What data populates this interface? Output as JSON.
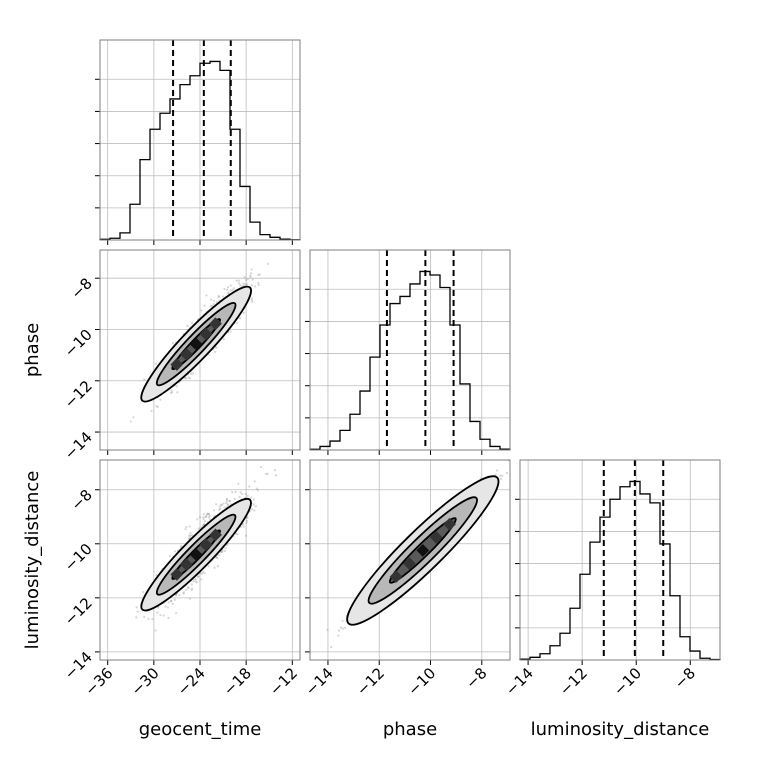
{
  "chart_data": {
    "type": "corner",
    "parameters": [
      "geocent_time",
      "phase",
      "luminosity_distance"
    ],
    "axis_labels": {
      "x": [
        "geocent_time",
        "phase",
        "luminosity_distance"
      ],
      "y": [
        "phase",
        "luminosity_distance"
      ]
    },
    "ranges": {
      "geocent_time": [
        -37,
        -11
      ],
      "phase": [
        -14.7,
        -6.9
      ],
      "luminosity_distance": [
        -14.3,
        -6.9
      ]
    },
    "ticks": {
      "geocent_time": [
        -36,
        -30,
        -24,
        -18,
        -12
      ],
      "phase": [
        -14,
        -12,
        -10,
        -8
      ],
      "luminosity_distance": [
        -14,
        -12,
        -10,
        -8
      ]
    },
    "tick_labels": {
      "geocent_time": [
        "−36",
        "−30",
        "−24",
        "−18",
        "−12"
      ],
      "phase": [
        "−14",
        "−12",
        "−10",
        "−8"
      ],
      "luminosity_distance": [
        "−14",
        "−12",
        "−10",
        "−8"
      ]
    },
    "quantiles": {
      "geocent_time": [
        -27.5,
        -23.5,
        -20.0
      ],
      "phase": [
        -11.7,
        -10.2,
        -9.1
      ],
      "luminosity_distance": [
        -11.2,
        -10.05,
        -9.0
      ]
    },
    "histograms": [
      {
        "parameter": "geocent_time",
        "bin_edges": [
          -37,
          -35.7,
          -34.4,
          -33.1,
          -31.8,
          -30.5,
          -29.2,
          -27.9,
          -26.6,
          -25.3,
          -24.0,
          -22.7,
          -21.4,
          -20.1,
          -18.8,
          -17.5,
          -16.2,
          -14.9,
          -13.6,
          -12.3,
          -11.0
        ],
        "counts": [
          0.004,
          0.01,
          0.04,
          0.2,
          0.45,
          0.62,
          0.71,
          0.79,
          0.87,
          0.92,
          0.99,
          1.0,
          0.95,
          0.62,
          0.3,
          0.1,
          0.03,
          0.015,
          0.005,
          0.001
        ]
      },
      {
        "parameter": "phase",
        "bin_edges": [
          -14.7,
          -14.31,
          -13.92,
          -13.53,
          -13.14,
          -12.75,
          -12.36,
          -11.97,
          -11.58,
          -11.19,
          -10.8,
          -10.41,
          -10.02,
          -9.63,
          -9.24,
          -8.85,
          -8.46,
          -8.07,
          -7.68,
          -7.29,
          -6.9
        ],
        "counts": [
          0.004,
          0.02,
          0.05,
          0.11,
          0.2,
          0.33,
          0.52,
          0.7,
          0.82,
          0.86,
          0.93,
          1.0,
          0.98,
          0.91,
          0.7,
          0.37,
          0.16,
          0.06,
          0.02,
          0.005
        ]
      },
      {
        "parameter": "luminosity_distance",
        "bin_edges": [
          -14.3,
          -13.93,
          -13.56,
          -13.19,
          -12.82,
          -12.45,
          -12.08,
          -11.71,
          -11.34,
          -10.97,
          -10.6,
          -10.23,
          -9.86,
          -9.49,
          -9.12,
          -8.75,
          -8.38,
          -8.01,
          -7.64,
          -7.27,
          -6.9
        ],
        "counts": [
          0.005,
          0.015,
          0.035,
          0.08,
          0.15,
          0.29,
          0.48,
          0.66,
          0.8,
          0.9,
          0.97,
          1.0,
          0.93,
          0.88,
          0.65,
          0.36,
          0.13,
          0.05,
          0.01,
          0.003
        ]
      }
    ],
    "contour_levels": [
      "inner",
      "middle",
      "outer"
    ]
  }
}
